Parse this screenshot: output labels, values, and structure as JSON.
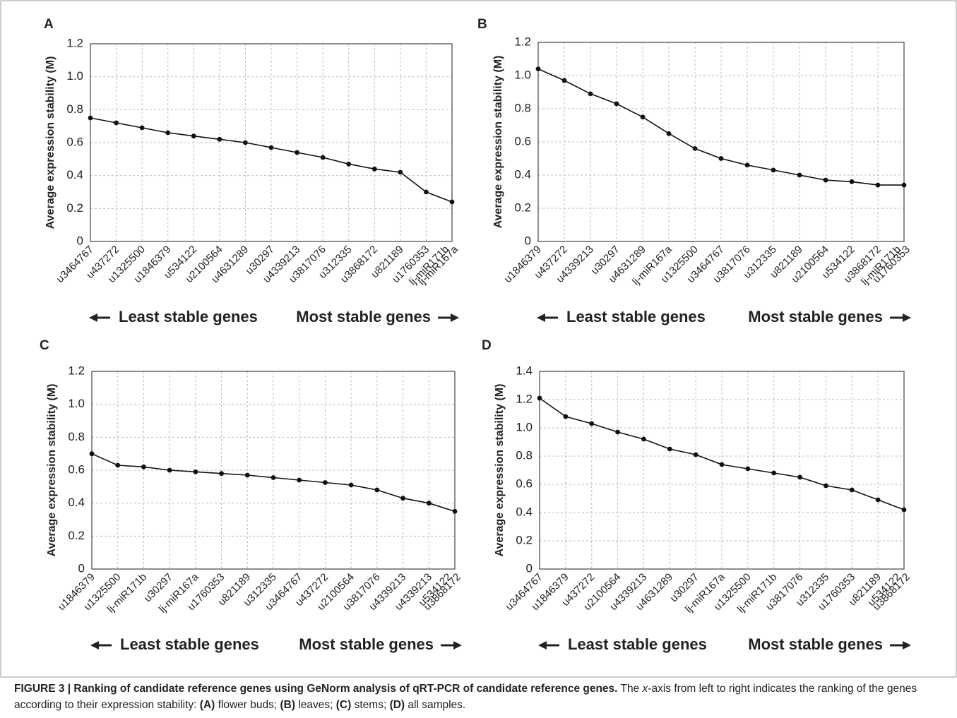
{
  "chart_data": [
    {
      "type": "line",
      "panel": "A",
      "y_label": "Average expression stability (M)",
      "categories": [
        "u3464767",
        "u437272",
        "u1325500",
        "u1846379",
        "u534122",
        "u2100564",
        "u4631289",
        "u30297",
        "u4339213",
        "u3817076",
        "u312335",
        "u3868172",
        "u821189",
        "u1760353",
        [
          "lj-miR171b",
          "lj-miR167a"
        ]
      ],
      "values": [
        0.75,
        0.72,
        0.69,
        0.66,
        0.64,
        0.62,
        0.6,
        0.57,
        0.54,
        0.51,
        0.47,
        0.44,
        0.42,
        0.3,
        0.24
      ],
      "color": "#111111",
      "ylim": [
        0,
        1.2
      ],
      "yticks": [
        0,
        0.2,
        0.4,
        0.6,
        0.8,
        {
          "value": 1,
          "label": "1.0"
        },
        1.2
      ],
      "grid": true,
      "annotations": [
        "Least stable genes",
        "Most stable genes"
      ]
    },
    {
      "type": "line",
      "panel": "B",
      "y_label": "Average expression stability (M)",
      "categories": [
        "u1846379",
        "u437272",
        "u4339213",
        "u30297",
        "u4631289",
        "lj-miR167a",
        "u1325500",
        "u3464767",
        "u3817076",
        "u312335",
        "u821189",
        "u2100564",
        "u534122",
        "u3868172",
        [
          "lj-miR171b",
          "u1760353"
        ]
      ],
      "values": [
        1.04,
        0.97,
        0.89,
        0.83,
        0.75,
        0.65,
        0.56,
        0.5,
        0.46,
        0.43,
        0.4,
        0.37,
        0.36,
        0.34,
        0.34
      ],
      "color": "#111111",
      "ylim": [
        0,
        1.2
      ],
      "yticks": [
        0,
        0.2,
        0.4,
        0.6,
        0.8,
        {
          "value": 1,
          "label": "1.0"
        },
        1.2
      ],
      "grid": true,
      "annotations": [
        "Least stable genes",
        "Most stable genes"
      ]
    },
    {
      "type": "line",
      "panel": "C",
      "y_label": "Average expression stability (M)",
      "categories": [
        "u1846379",
        "u1325500",
        "lj-miR171b",
        "u30297",
        "lj-miR167a",
        "u1760353",
        "u821189",
        "u312335",
        "u3464767",
        "u437272",
        "u2100564",
        "u3817076",
        "u4339213",
        "u4339213",
        [
          "u534122",
          "u3868172"
        ]
      ],
      "values": [
        0.7,
        0.63,
        0.62,
        0.6,
        0.59,
        0.58,
        0.57,
        0.555,
        0.54,
        0.525,
        0.51,
        0.48,
        0.43,
        0.4,
        0.35
      ],
      "color": "#111111",
      "ylim": [
        0,
        1.2
      ],
      "yticks": [
        0,
        0.2,
        0.4,
        0.6,
        0.8,
        {
          "value": 1,
          "label": "1.0"
        },
        1.2
      ],
      "grid": true,
      "annotations": [
        "Least stable genes",
        "Most stable genes"
      ]
    },
    {
      "type": "line",
      "panel": "D",
      "y_label": "Average expression stability (M)",
      "categories": [
        "u3464767",
        "u1846379",
        "u437272",
        "u2100564",
        "u4339213",
        "u4631289",
        "u30297",
        "lj-miR167a",
        "u1325500",
        "lj-miR171b",
        "u3817076",
        "u312335",
        "u1760353",
        "u821189",
        [
          "u534122",
          "u3868172"
        ]
      ],
      "values": [
        1.21,
        1.08,
        1.03,
        0.97,
        0.92,
        0.85,
        0.81,
        0.74,
        0.71,
        0.68,
        0.65,
        0.59,
        0.56,
        0.49,
        0.42
      ],
      "color": "#111111",
      "ylim": [
        0,
        1.4
      ],
      "yticks": [
        0,
        0.2,
        0.4,
        0.6,
        0.8,
        {
          "value": 1,
          "label": "1.0"
        },
        1.2,
        1.4
      ],
      "grid": true,
      "annotations": [
        "Least stable genes",
        "Most stable genes"
      ]
    }
  ],
  "caption": {
    "runs": [
      {
        "text": "FIGURE 3 | Ranking of candidate reference genes using GeNorm analysis of qRT-PCR of candidate reference genes.",
        "bold": true
      },
      {
        "text": " The "
      },
      {
        "text": "x",
        "italic": true
      },
      {
        "text": "-axis from left to right indicates the ranking of the genes according to their expression stability: "
      },
      {
        "text": "(A)",
        "bold": true
      },
      {
        "text": " flower buds; "
      },
      {
        "text": "(B)",
        "bold": true
      },
      {
        "text": " leaves; "
      },
      {
        "text": "(C)",
        "bold": true
      },
      {
        "text": " stems; "
      },
      {
        "text": "(D)",
        "bold": true
      },
      {
        "text": " all samples."
      }
    ]
  }
}
